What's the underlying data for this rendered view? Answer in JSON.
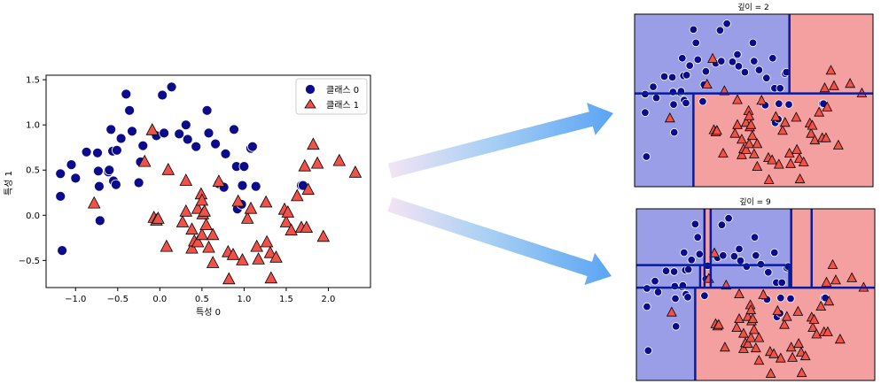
{
  "chart_data": [
    {
      "type": "scatter",
      "xlabel": "특성 0",
      "ylabel": "특성 1",
      "xlim": [
        -1.35,
        2.5
      ],
      "ylim": [
        -0.8,
        1.55
      ],
      "xticks": [
        -1.0,
        -0.5,
        0.0,
        0.5,
        1.0,
        1.5,
        2.0
      ],
      "xtick_labels": [
        "−1.0",
        "−0.5",
        "0.0",
        "0.5",
        "1.0",
        "1.5",
        "2.0"
      ],
      "yticks": [
        -0.5,
        0.0,
        0.5,
        1.0,
        1.5
      ],
      "ytick_labels": [
        "−0.5",
        "0.0",
        "0.5",
        "1.0",
        "1.5"
      ],
      "legend_position": "top-right",
      "series": [
        {
          "name": "클래스 0",
          "marker": "circle",
          "color": "#0b0b8c",
          "points": [
            [
              -1.16,
              -0.39
            ],
            [
              -1.18,
              0.46
            ],
            [
              -1.18,
              0.21
            ],
            [
              -1.05,
              0.56
            ],
            [
              -1.0,
              0.41
            ],
            [
              -0.87,
              0.7
            ],
            [
              -0.74,
              0.69
            ],
            [
              -0.73,
              0.49
            ],
            [
              -0.72,
              0.32
            ],
            [
              -0.71,
              -0.06
            ],
            [
              -0.61,
              0.48
            ],
            [
              -0.6,
              0.5
            ],
            [
              -0.58,
              0.95
            ],
            [
              -0.56,
              0.71
            ],
            [
              -0.55,
              0.38
            ],
            [
              -0.52,
              0.34
            ],
            [
              -0.51,
              0.72
            ],
            [
              -0.46,
              0.85
            ],
            [
              -0.4,
              1.34
            ],
            [
              -0.36,
              1.16
            ],
            [
              -0.33,
              0.93
            ],
            [
              -0.25,
              0.36
            ],
            [
              -0.23,
              0.59
            ],
            [
              -0.2,
              0.77
            ],
            [
              -0.04,
              0.88
            ],
            [
              0.03,
              1.33
            ],
            [
              0.05,
              0.91
            ],
            [
              0.14,
              1.42
            ],
            [
              0.23,
              0.9
            ],
            [
              0.31,
              1.0
            ],
            [
              0.33,
              0.84
            ],
            [
              0.43,
              0.76
            ],
            [
              0.56,
              1.16
            ],
            [
              0.58,
              0.91
            ],
            [
              0.66,
              0.79
            ],
            [
              0.7,
              0.35
            ],
            [
              0.76,
              0.31
            ],
            [
              0.78,
              0.68
            ],
            [
              0.88,
              0.95
            ],
            [
              0.91,
              0.54
            ],
            [
              0.92,
              0.07
            ],
            [
              0.97,
              0.12
            ],
            [
              0.98,
              0.33
            ],
            [
              1.0,
              0.54
            ],
            [
              1.08,
              0.74
            ],
            [
              1.1,
              0.76
            ],
            [
              1.14,
              0.32
            ],
            [
              1.68,
              0.33
            ],
            [
              1.7,
              0.33
            ]
          ]
        },
        {
          "name": "클래스 1",
          "marker": "triangle",
          "color": "#f0524a",
          "points": [
            [
              -0.78,
              0.13
            ],
            [
              -0.18,
              0.59
            ],
            [
              -0.09,
              0.94
            ],
            [
              -0.07,
              -0.03
            ],
            [
              -0.04,
              -0.06
            ],
            [
              -0.02,
              -0.04
            ],
            [
              0.1,
              0.5
            ],
            [
              0.08,
              -0.35
            ],
            [
              0.27,
              -0.08
            ],
            [
              0.31,
              0.04
            ],
            [
              0.31,
              0.38
            ],
            [
              0.38,
              -0.16
            ],
            [
              0.38,
              -0.37
            ],
            [
              0.41,
              -0.29
            ],
            [
              0.45,
              0.07
            ],
            [
              0.45,
              -0.3
            ],
            [
              0.49,
              0.23
            ],
            [
              0.5,
              0.16
            ],
            [
              0.5,
              -0.22
            ],
            [
              0.51,
              0.01
            ],
            [
              0.53,
              0.04
            ],
            [
              0.55,
              -0.11
            ],
            [
              0.58,
              -0.36
            ],
            [
              0.63,
              -0.22
            ],
            [
              0.63,
              -0.53
            ],
            [
              0.7,
              0.37
            ],
            [
              0.81,
              -0.41
            ],
            [
              0.82,
              -0.71
            ],
            [
              0.87,
              -0.44
            ],
            [
              0.93,
              0.15
            ],
            [
              0.98,
              -0.5
            ],
            [
              1.04,
              -0.04
            ],
            [
              1.08,
              0.07
            ],
            [
              1.15,
              -0.35
            ],
            [
              1.17,
              -0.49
            ],
            [
              1.26,
              0.14
            ],
            [
              1.27,
              -0.3
            ],
            [
              1.31,
              -0.42
            ],
            [
              1.32,
              -0.7
            ],
            [
              1.38,
              -0.47
            ],
            [
              1.48,
              0.06
            ],
            [
              1.5,
              -0.08
            ],
            [
              1.52,
              0.03
            ],
            [
              1.56,
              -0.17
            ],
            [
              1.63,
              0.21
            ],
            [
              1.68,
              -0.14
            ],
            [
              1.72,
              0.54
            ],
            [
              1.74,
              -0.14
            ],
            [
              1.76,
              0.28
            ],
            [
              1.82,
              0.78
            ],
            [
              1.87,
              0.57
            ],
            [
              1.94,
              -0.24
            ],
            [
              2.13,
              0.6
            ],
            [
              2.32,
              0.47
            ]
          ]
        }
      ]
    },
    {
      "type": "decision_regions",
      "title": "깊이 = 2",
      "region_colors": {
        "class_0": "#9a9ee6",
        "class_1": "#f4a0a0"
      },
      "split_color": "#0a1c9c",
      "xlim": [
        -1.35,
        2.5
      ],
      "ylim": [
        -0.8,
        1.55
      ],
      "splits": [
        {
          "axis": "y",
          "value": 0.47,
          "x0": -1.35,
          "x1": 2.5
        },
        {
          "axis": "x",
          "value": 1.15,
          "y0": 0.47,
          "y1": 1.55
        },
        {
          "axis": "x",
          "value": -0.4,
          "y0": -0.8,
          "y1": 0.47
        }
      ],
      "regions": [
        {
          "x0": -1.35,
          "x1": 1.15,
          "y0": 0.47,
          "y1": 1.55,
          "class": 0
        },
        {
          "x0": 1.15,
          "x1": 2.5,
          "y0": 0.47,
          "y1": 1.55,
          "class": 1
        },
        {
          "x0": -1.35,
          "x1": -0.4,
          "y0": -0.8,
          "y1": 0.47,
          "class": 0
        },
        {
          "x0": -0.4,
          "x1": 2.5,
          "y0": -0.8,
          "y1": 0.47,
          "class": 1
        }
      ]
    },
    {
      "type": "decision_regions",
      "title": "깊이 = 9",
      "region_colors": {
        "class_0": "#9a9ee6",
        "class_1": "#f4a0a0"
      },
      "split_color": "#0a1c9c",
      "xlim": [
        -1.35,
        2.5
      ],
      "ylim": [
        -0.8,
        1.55
      ],
      "splits": [
        {
          "axis": "y",
          "value": 0.47,
          "x0": -1.35,
          "x1": 2.5
        },
        {
          "axis": "x",
          "value": 1.15,
          "y0": 0.47,
          "y1": 1.55
        },
        {
          "axis": "x",
          "value": -0.4,
          "y0": -0.8,
          "y1": 0.47
        },
        {
          "axis": "x",
          "value": -0.25,
          "y0": 0.47,
          "y1": 1.55
        },
        {
          "axis": "x",
          "value": -0.15,
          "y0": 0.47,
          "y1": 1.55
        },
        {
          "axis": "y",
          "value": 0.78,
          "x0": -1.35,
          "x1": 1.15
        },
        {
          "axis": "x",
          "value": -0.32,
          "y0": 0.47,
          "y1": 0.78
        },
        {
          "axis": "x",
          "value": 1.48,
          "y0": 0.47,
          "y1": 1.55
        },
        {
          "axis": "x",
          "value": 1.12,
          "y0": 0.47,
          "y1": 0.78
        }
      ],
      "regions": [
        {
          "x0": -1.35,
          "x1": 1.15,
          "y0": 0.47,
          "y1": 1.55,
          "class": 0
        },
        {
          "x0": 1.15,
          "x1": 1.48,
          "y0": 0.47,
          "y1": 1.55,
          "class": 1
        },
        {
          "x0": 1.48,
          "x1": 2.5,
          "y0": 0.47,
          "y1": 1.55,
          "class": 1
        },
        {
          "x0": -0.25,
          "x1": -0.15,
          "y0": 0.47,
          "y1": 1.55,
          "class": 1
        },
        {
          "x0": -0.32,
          "x1": -0.25,
          "y0": 0.47,
          "y1": 0.78,
          "class": 1
        },
        {
          "x0": -1.35,
          "x1": -0.4,
          "y0": -0.8,
          "y1": 0.47,
          "class": 0
        },
        {
          "x0": -0.4,
          "x1": 2.5,
          "y0": -0.8,
          "y1": 0.47,
          "class": 1
        }
      ]
    }
  ],
  "arrows": {
    "gradient_start": "#f4e4f4",
    "gradient_mid": "#a8d0f4",
    "gradient_end": "#5aa4f4"
  }
}
